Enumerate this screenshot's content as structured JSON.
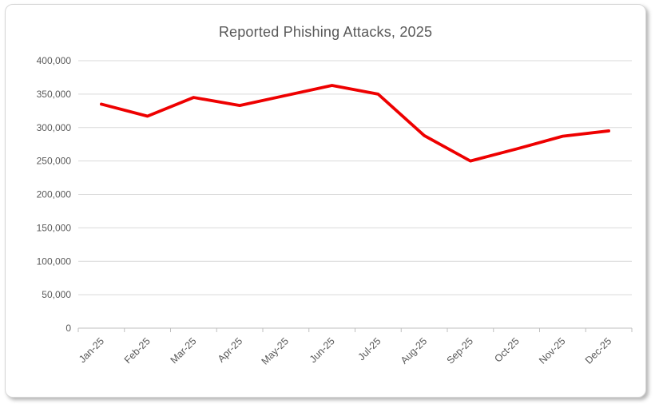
{
  "chart": {
    "title": "Reported Phishing Attacks, 2025"
  },
  "chart_data": {
    "type": "line",
    "title": "Reported Phishing Attacks, 2025",
    "categories": [
      "Jan-25",
      "Feb-25",
      "Mar-25",
      "Apr-25",
      "May-25",
      "Jun-25",
      "Jul-25",
      "Aug-25",
      "Sep-25",
      "Oct-25",
      "Nov-25",
      "Dec-25"
    ],
    "values": [
      335000,
      317000,
      345000,
      333000,
      348000,
      363000,
      350000,
      288000,
      250000,
      268000,
      287000,
      295000
    ],
    "xlabel": "",
    "ylabel": "",
    "ylim": [
      0,
      400000
    ],
    "y_tick_step": 50000,
    "y_tick_labels": [
      "0",
      "50,000",
      "100,000",
      "150,000",
      "200,000",
      "250,000",
      "300,000",
      "350,000",
      "400,000"
    ],
    "grid": true,
    "legend": "none",
    "x_label_rotation": -45,
    "colors": {
      "line": "#ee0000",
      "grid": "#d9d9d9",
      "axis": "#bfbfbf",
      "text": "#595959",
      "frame_border": "#d7d7d7",
      "background": "#ffffff"
    }
  }
}
